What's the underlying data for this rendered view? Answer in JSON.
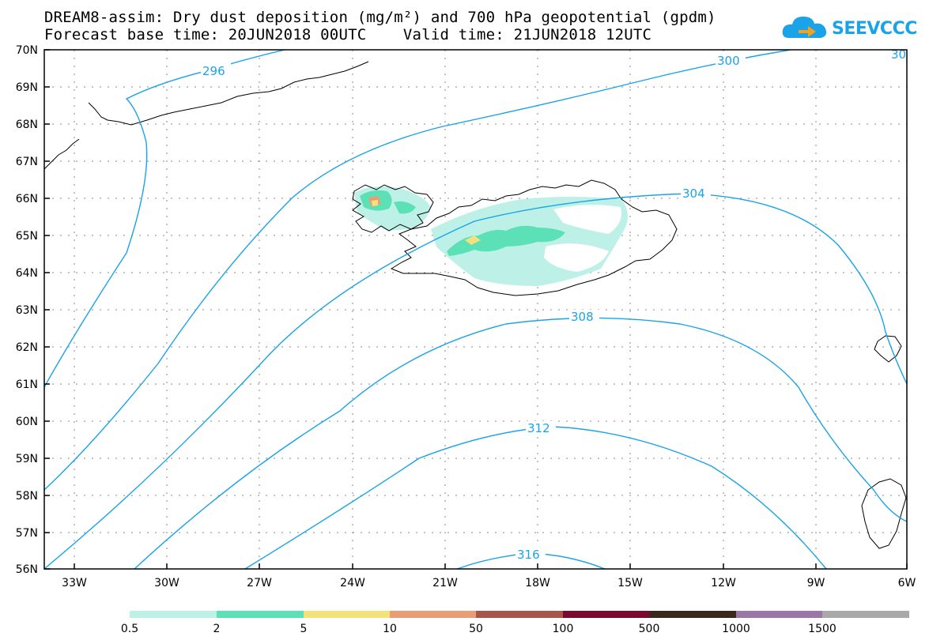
{
  "title": {
    "line1": "DREAM8-assim: Dry dust deposition (mg/m²) and 700 hPa geopotential (gpdm)",
    "line2": "Forecast base time: 20JUN2018 00UTC    Valid time: 21JUN2018 12UTC"
  },
  "logo": {
    "text": "SEEVCCC",
    "icon": "cloud-arrow-icon",
    "color": "#1aa3e8"
  },
  "map": {
    "lat_labels": [
      "70N",
      "69N",
      "68N",
      "67N",
      "66N",
      "65N",
      "64N",
      "63N",
      "62N",
      "61N",
      "60N",
      "59N",
      "58N",
      "57N",
      "56N"
    ],
    "lon_labels": [
      "33W",
      "30W",
      "27W",
      "24W",
      "21W",
      "18W",
      "15W",
      "12W",
      "9W",
      "6W"
    ],
    "contour_color": "#1aa3e8",
    "contour_labels": [
      "296",
      "300",
      "30",
      "304",
      "308",
      "312",
      "316"
    ]
  },
  "legend": {
    "colors": [
      "#bdf0e6",
      "#5ce0b6",
      "#f2e27c",
      "#eb9c75",
      "#a8554a",
      "#7a0a2e",
      "#3b2a1c",
      "#9a77a6",
      "#a9a9a9"
    ],
    "labels": [
      "0.5",
      "2",
      "5",
      "10",
      "50",
      "100",
      "500",
      "1000",
      "1500"
    ]
  }
}
